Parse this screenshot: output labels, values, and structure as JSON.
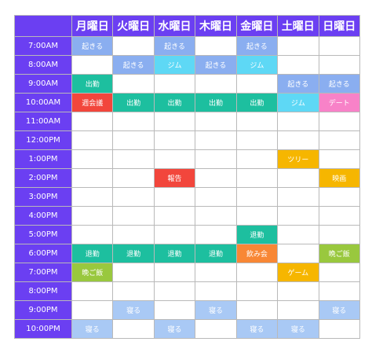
{
  "colors": {
    "header": "#6b3ff2",
    "wake": "#8aaef0",
    "gym": "#5ed8f5",
    "work": "#1dbf9f",
    "meeting": "#f2463c",
    "date": "#f882c8",
    "sleep": "#a9c9f5",
    "dinner": "#99c83e",
    "game": "#f6b600",
    "movie": "#f6b600",
    "drink": "#f88735"
  },
  "days": [
    "月曜日",
    "火曜日",
    "水曜日",
    "木曜日",
    "金曜日",
    "土曜日",
    "日曜日"
  ],
  "rows": [
    {
      "time": "7:00AM",
      "cells": [
        [
          "起きる",
          "wake"
        ],
        null,
        [
          "起きる",
          "wake"
        ],
        null,
        [
          "起きる",
          "wake"
        ],
        null,
        null
      ]
    },
    {
      "time": "8:00AM",
      "cells": [
        null,
        [
          "起きる",
          "wake"
        ],
        [
          "ジム",
          "gym"
        ],
        [
          "起きる",
          "wake"
        ],
        [
          "ジム",
          "gym"
        ],
        null,
        null
      ]
    },
    {
      "time": "9:00AM",
      "cells": [
        [
          "出勤",
          "work"
        ],
        null,
        null,
        null,
        null,
        [
          "起きる",
          "wake"
        ],
        [
          "起きる",
          "wake"
        ]
      ]
    },
    {
      "time": "10:00AM",
      "cells": [
        [
          "週会議",
          "meeting"
        ],
        [
          "出勤",
          "work"
        ],
        [
          "出勤",
          "work"
        ],
        [
          "出勤",
          "work"
        ],
        [
          "出勤",
          "work"
        ],
        [
          "ジム",
          "gym"
        ],
        [
          "デート",
          "date"
        ]
      ]
    },
    {
      "time": "11:00AM",
      "cells": [
        null,
        null,
        null,
        null,
        null,
        null,
        null
      ]
    },
    {
      "time": "12:00PM",
      "cells": [
        null,
        null,
        null,
        null,
        null,
        null,
        null
      ]
    },
    {
      "time": "1:00PM",
      "cells": [
        null,
        null,
        null,
        null,
        null,
        [
          "ツリー",
          "game"
        ],
        null
      ]
    },
    {
      "time": "2:00PM",
      "cells": [
        null,
        null,
        [
          "報告",
          "meeting"
        ],
        null,
        null,
        null,
        [
          "映画",
          "movie"
        ]
      ]
    },
    {
      "time": "3:00PM",
      "cells": [
        null,
        null,
        null,
        null,
        null,
        null,
        null
      ]
    },
    {
      "time": "4:00PM",
      "cells": [
        null,
        null,
        null,
        null,
        null,
        null,
        null
      ]
    },
    {
      "time": "5:00PM",
      "cells": [
        null,
        null,
        null,
        null,
        [
          "退勤",
          "work"
        ],
        null,
        null
      ]
    },
    {
      "time": "6:00PM",
      "cells": [
        [
          "退勤",
          "work"
        ],
        [
          "退勤",
          "work"
        ],
        [
          "退勤",
          "work"
        ],
        [
          "退勤",
          "work"
        ],
        [
          "飲み会",
          "drink"
        ],
        null,
        [
          "晩ご飯",
          "dinner"
        ]
      ]
    },
    {
      "time": "7:00PM",
      "cells": [
        [
          "晩ご飯",
          "dinner"
        ],
        null,
        null,
        null,
        null,
        [
          "ゲーム",
          "game"
        ],
        null
      ]
    },
    {
      "time": "8:00PM",
      "cells": [
        null,
        null,
        null,
        null,
        null,
        null,
        null
      ]
    },
    {
      "time": "9:00PM",
      "cells": [
        null,
        [
          "寝る",
          "sleep"
        ],
        null,
        [
          "寝る",
          "sleep"
        ],
        null,
        null,
        [
          "寝る",
          "sleep"
        ]
      ]
    },
    {
      "time": "10:00PM",
      "cells": [
        [
          "寝る",
          "sleep"
        ],
        null,
        [
          "寝る",
          "sleep"
        ],
        null,
        [
          "寝る",
          "sleep"
        ],
        [
          "寝る",
          "sleep"
        ],
        null
      ]
    }
  ]
}
